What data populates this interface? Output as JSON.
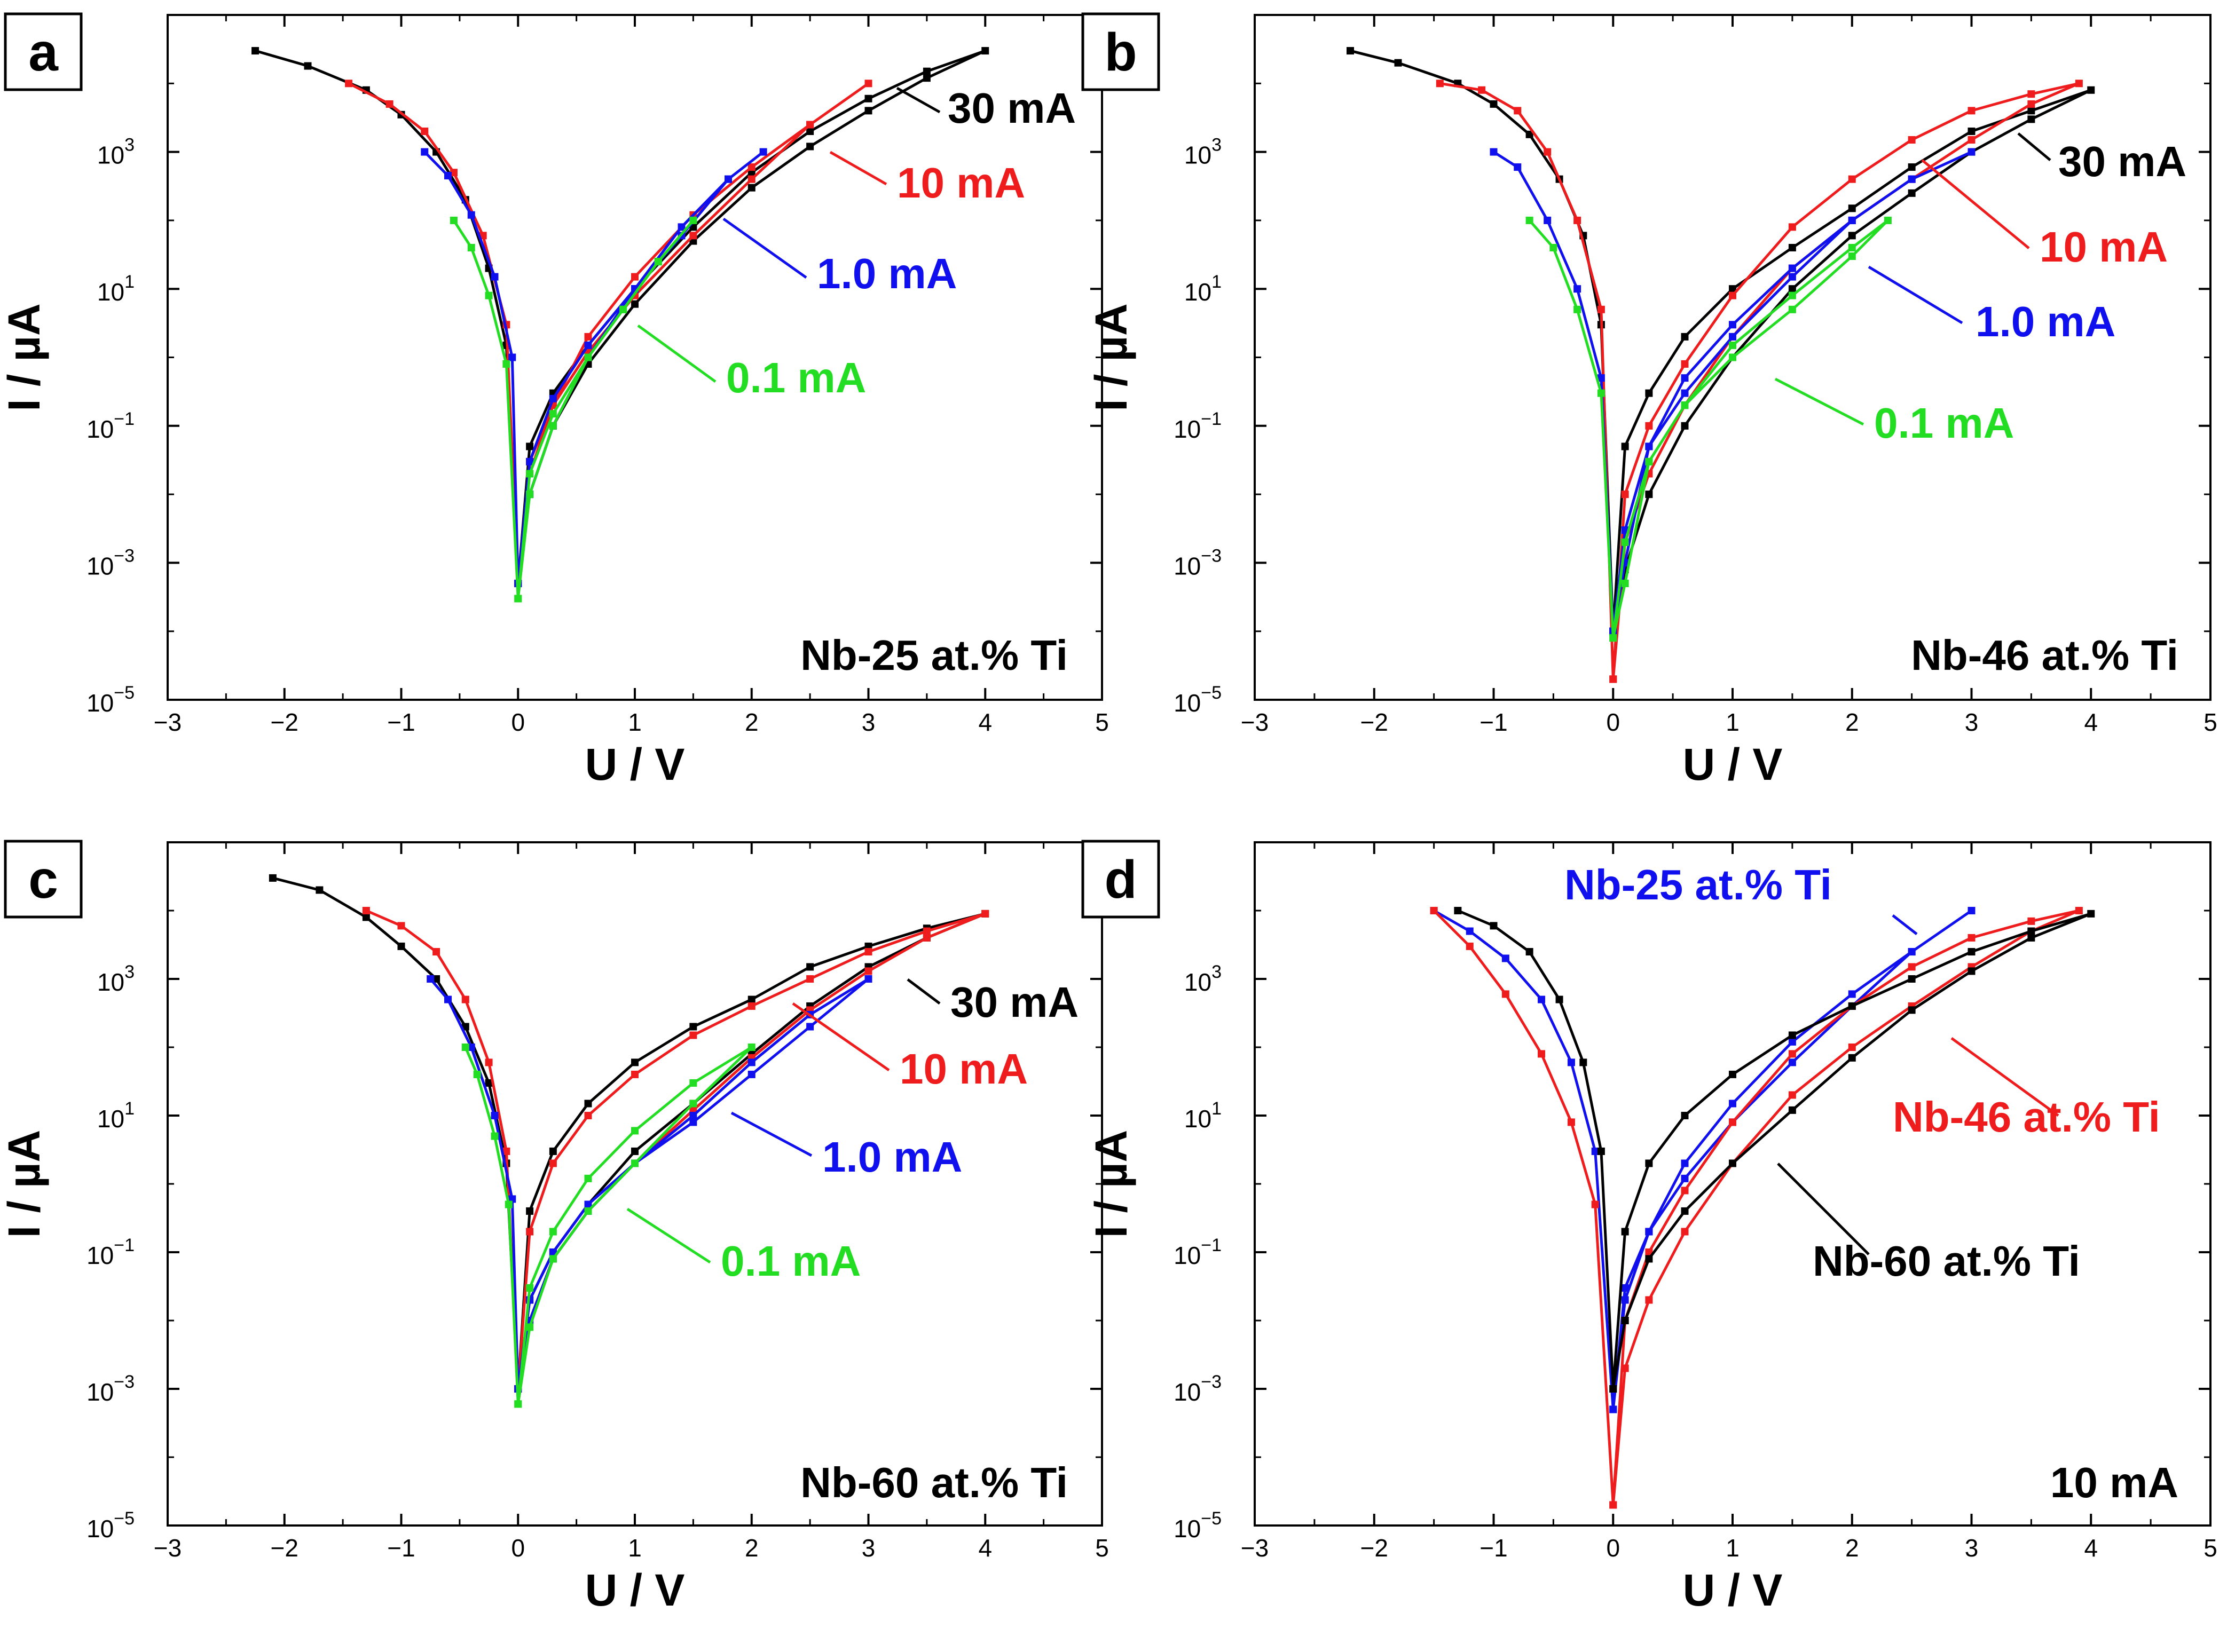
{
  "figure": {
    "colors": {
      "black": "#000000",
      "red": "#ee1c1c",
      "blue": "#1010ee",
      "green": "#22dd22"
    }
  },
  "chart_data": [
    {
      "type": "line",
      "panel": "a",
      "xlabel": "U / V",
      "ylabel": "I / µA",
      "xlim": [
        -3,
        5
      ],
      "ylim_log10": [
        -5,
        5
      ],
      "yscale": "log",
      "xticks": [
        "−3",
        "−2",
        "−1",
        "0",
        "1",
        "2",
        "3",
        "4",
        "5"
      ],
      "yticks": [
        {
          "base": "10",
          "exp": "3"
        },
        {
          "base": "10",
          "exp": "1"
        },
        {
          "base": "10",
          "exp": "−1"
        },
        {
          "base": "10",
          "exp": "−3"
        },
        {
          "base": "10",
          "exp": "−5"
        }
      ],
      "sample_label": "Nb-25 at.% Ti",
      "series": [
        {
          "name": "30 mA",
          "color": "black",
          "x": [
            -2.25,
            -1.8,
            -1.3,
            -1.0,
            -0.7,
            -0.45,
            -0.25,
            -0.1,
            0,
            0.1,
            0.3,
            0.6,
            1.0,
            1.5,
            2.0,
            2.5,
            3.0,
            3.5,
            4.0,
            3.5,
            3.0,
            2.5,
            2.0,
            1.5,
            1.0,
            0.6,
            0.3,
            0.1,
            0
          ],
          "y": [
            30000,
            18000,
            8000,
            3500,
            1000,
            200,
            20,
            1.5,
            0.0005,
            0.05,
            0.3,
            1.5,
            10,
            80,
            500,
            2000,
            6000,
            15000,
            30000,
            12000,
            4000,
            1200,
            300,
            50,
            6,
            0.8,
            0.1,
            0.01,
            0.0005
          ]
        },
        {
          "name": "10 mA",
          "color": "red",
          "x": [
            -1.45,
            -1.1,
            -0.8,
            -0.55,
            -0.3,
            -0.1,
            0,
            0.1,
            0.3,
            0.6,
            1.0,
            1.5,
            2.0,
            2.5,
            3.0,
            2.5,
            2.0,
            1.5,
            1.0,
            0.6,
            0.3,
            0.1,
            0
          ],
          "y": [
            10000,
            5000,
            2000,
            500,
            60,
            3,
            0.0005,
            0.03,
            0.2,
            1.2,
            8,
            60,
            400,
            2500,
            10000,
            2500,
            600,
            120,
            15,
            2,
            0.2,
            0.02,
            0.0005
          ]
        },
        {
          "name": "1.0 mA",
          "color": "blue",
          "x": [
            -0.8,
            -0.6,
            -0.4,
            -0.2,
            -0.05,
            0,
            0.1,
            0.3,
            0.6,
            1.0,
            1.4,
            1.8,
            2.1,
            1.8,
            1.4,
            1.0,
            0.6,
            0.3,
            0.1,
            0
          ],
          "y": [
            1000,
            450,
            120,
            15,
            1,
            0.0005,
            0.03,
            0.25,
            1.5,
            10,
            60,
            400,
            1000,
            400,
            80,
            10,
            1,
            0.1,
            0.01,
            0.0005
          ]
        },
        {
          "name": "0.1 mA",
          "color": "green",
          "x": [
            -0.55,
            -0.4,
            -0.25,
            -0.1,
            0,
            0.1,
            0.3,
            0.6,
            0.9,
            1.2,
            1.5,
            1.2,
            0.9,
            0.6,
            0.3,
            0.1,
            0
          ],
          "y": [
            100,
            40,
            8,
            0.8,
            0.0003,
            0.02,
            0.15,
            1,
            5,
            25,
            100,
            25,
            5,
            1,
            0.1,
            0.01,
            0.0003
          ]
        }
      ],
      "annotations": [
        {
          "text": "30 mA",
          "color": "black",
          "series": "30 mA"
        },
        {
          "text": "10 mA",
          "color": "red",
          "series": "10 mA"
        },
        {
          "text": "1.0 mA",
          "color": "blue",
          "series": "1.0 mA"
        },
        {
          "text": "0.1 mA",
          "color": "green",
          "series": "0.1 mA"
        }
      ]
    },
    {
      "type": "line",
      "panel": "b",
      "xlabel": "U / V",
      "ylabel": "I / µA",
      "xlim": [
        -3,
        5
      ],
      "ylim_log10": [
        -5,
        5
      ],
      "yscale": "log",
      "xticks": [
        "−3",
        "−2",
        "−1",
        "0",
        "1",
        "2",
        "3",
        "4",
        "5"
      ],
      "yticks": [
        {
          "base": "10",
          "exp": "3"
        },
        {
          "base": "10",
          "exp": "1"
        },
        {
          "base": "10",
          "exp": "−1"
        },
        {
          "base": "10",
          "exp": "−3"
        },
        {
          "base": "10",
          "exp": "−5"
        }
      ],
      "sample_label": "Nb-46 at.% Ti",
      "series": [
        {
          "name": "30 mA",
          "color": "black",
          "x": [
            -2.2,
            -1.8,
            -1.3,
            -1.0,
            -0.7,
            -0.45,
            -0.25,
            -0.1,
            0,
            0.1,
            0.3,
            0.6,
            1.0,
            1.5,
            2.0,
            2.5,
            3.0,
            3.5,
            4.0,
            3.5,
            3.0,
            2.5,
            2.0,
            1.5,
            1.0,
            0.6,
            0.3,
            0.1,
            0
          ],
          "y": [
            30000,
            20000,
            10000,
            5000,
            1800,
            400,
            60,
            3,
            0.0001,
            0.05,
            0.3,
            2,
            10,
            40,
            150,
            600,
            2000,
            4000,
            8000,
            3000,
            1000,
            250,
            60,
            10,
            1,
            0.1,
            0.01,
            0.0008,
            0.0001
          ]
        },
        {
          "name": "10 mA",
          "color": "red",
          "x": [
            -1.45,
            -1.1,
            -0.8,
            -0.55,
            -0.3,
            -0.1,
            0,
            0.1,
            0.3,
            0.6,
            1.0,
            1.5,
            2.0,
            2.5,
            3.0,
            3.5,
            3.9,
            3.5,
            3.0,
            2.5,
            2.0,
            1.5,
            1.0,
            0.6,
            0.3,
            0.1,
            0
          ],
          "y": [
            10000,
            8000,
            4000,
            1000,
            100,
            5,
            2e-05,
            0.01,
            0.1,
            0.8,
            8,
            80,
            400,
            1500,
            4000,
            7000,
            10000,
            5000,
            1500,
            400,
            100,
            20,
            2,
            0.2,
            0.02,
            0.002,
            2e-05
          ]
        },
        {
          "name": "1.0 mA",
          "color": "blue",
          "x": [
            -1.0,
            -0.8,
            -0.55,
            -0.3,
            -0.1,
            0,
            0.1,
            0.3,
            0.6,
            1.0,
            1.5,
            2.0,
            2.5,
            3.0,
            2.5,
            2.0,
            1.5,
            1.0,
            0.6,
            0.3,
            0.1,
            0
          ],
          "y": [
            1000,
            600,
            100,
            10,
            0.5,
            0.0001,
            0.003,
            0.05,
            0.5,
            3,
            20,
            100,
            400,
            1000,
            400,
            100,
            15,
            2,
            0.3,
            0.05,
            0.001,
            0.0001
          ]
        },
        {
          "name": "0.1 mA",
          "color": "green",
          "x": [
            -0.7,
            -0.5,
            -0.3,
            -0.1,
            0,
            0.1,
            0.3,
            0.6,
            1.0,
            1.5,
            2.0,
            2.3,
            2.0,
            1.5,
            1.0,
            0.6,
            0.3,
            0.1,
            0
          ],
          "y": [
            100,
            40,
            5,
            0.3,
            8e-05,
            0.002,
            0.03,
            0.2,
            1.5,
            8,
            40,
            100,
            30,
            5,
            1,
            0.2,
            0.03,
            0.0005,
            8e-05
          ]
        }
      ],
      "annotations": [
        {
          "text": "30 mA",
          "color": "black",
          "series": "30 mA"
        },
        {
          "text": "10 mA",
          "color": "red",
          "series": "10 mA"
        },
        {
          "text": "1.0 mA",
          "color": "blue",
          "series": "1.0 mA"
        },
        {
          "text": "0.1 mA",
          "color": "green",
          "series": "0.1 mA"
        }
      ]
    },
    {
      "type": "line",
      "panel": "c",
      "xlabel": "U / V",
      "ylabel": "I / µA",
      "xlim": [
        -3,
        5
      ],
      "ylim_log10": [
        -5,
        5
      ],
      "yscale": "log",
      "xticks": [
        "−3",
        "−2",
        "−1",
        "0",
        "1",
        "2",
        "3",
        "4",
        "5"
      ],
      "yticks": [
        {
          "base": "10",
          "exp": "3"
        },
        {
          "base": "10",
          "exp": "1"
        },
        {
          "base": "10",
          "exp": "−1"
        },
        {
          "base": "10",
          "exp": "−3"
        },
        {
          "base": "10",
          "exp": "−5"
        }
      ],
      "sample_label": "Nb-60 at.% Ti",
      "series": [
        {
          "name": "30 mA",
          "color": "black",
          "x": [
            -2.1,
            -1.7,
            -1.3,
            -1.0,
            -0.7,
            -0.45,
            -0.25,
            -0.1,
            0,
            0.1,
            0.3,
            0.6,
            1.0,
            1.5,
            2.0,
            2.5,
            3.0,
            3.5,
            4.0,
            3.5,
            3.0,
            2.5,
            2.0,
            1.5,
            1.0,
            0.6,
            0.3,
            0.1,
            0
          ],
          "y": [
            30000,
            20000,
            8000,
            3000,
            1000,
            200,
            30,
            2,
            0.001,
            0.4,
            3,
            15,
            60,
            200,
            500,
            1500,
            3000,
            5500,
            9000,
            4000,
            1500,
            400,
            80,
            15,
            3,
            0.5,
            0.1,
            0.02,
            0.001
          ]
        },
        {
          "name": "10 mA",
          "color": "red",
          "x": [
            -1.3,
            -1.0,
            -0.7,
            -0.45,
            -0.25,
            -0.1,
            0,
            0.1,
            0.3,
            0.6,
            1.0,
            1.5,
            2.0,
            2.5,
            3.0,
            3.5,
            4.0,
            3.5,
            3.0,
            2.5,
            2.0,
            1.5,
            1.0,
            0.6,
            0.3,
            0.1,
            0
          ],
          "y": [
            10000,
            6000,
            2500,
            500,
            60,
            3,
            0.001,
            0.2,
            2,
            10,
            40,
            150,
            400,
            1000,
            2500,
            5000,
            9000,
            4000,
            1300,
            350,
            70,
            12,
            2,
            0.4,
            0.08,
            0.01,
            0.001
          ]
        },
        {
          "name": "1.0 mA",
          "color": "blue",
          "x": [
            -0.75,
            -0.6,
            -0.4,
            -0.2,
            -0.05,
            0,
            0.1,
            0.3,
            0.6,
            1.0,
            1.5,
            2.0,
            2.5,
            3.0,
            2.5,
            2.0,
            1.5,
            1.0,
            0.6,
            0.3,
            0.1,
            0
          ],
          "y": [
            1000,
            500,
            100,
            10,
            0.6,
            0.001,
            0.02,
            0.1,
            0.5,
            2,
            8,
            40,
            200,
            1000,
            300,
            60,
            10,
            2,
            0.4,
            0.08,
            0.01,
            0.001
          ]
        },
        {
          "name": "0.1 mA",
          "color": "green",
          "x": [
            -0.45,
            -0.35,
            -0.2,
            -0.08,
            0,
            0.1,
            0.3,
            0.6,
            1.0,
            1.5,
            2.0,
            1.5,
            1.0,
            0.6,
            0.3,
            0.1,
            0
          ],
          "y": [
            100,
            40,
            5,
            0.5,
            0.0006,
            0.03,
            0.2,
            1.2,
            6,
            30,
            100,
            15,
            2,
            0.4,
            0.08,
            0.008,
            0.0006
          ]
        }
      ],
      "annotations": [
        {
          "text": "30 mA",
          "color": "black",
          "series": "30 mA"
        },
        {
          "text": "10 mA",
          "color": "red",
          "series": "10 mA"
        },
        {
          "text": "1.0 mA",
          "color": "blue",
          "series": "1.0 mA"
        },
        {
          "text": "0.1 mA",
          "color": "green",
          "series": "0.1 mA"
        }
      ]
    },
    {
      "type": "line",
      "panel": "d",
      "xlabel": "U / V",
      "ylabel": "I / µA",
      "xlim": [
        -3,
        5
      ],
      "ylim_log10": [
        -5,
        5
      ],
      "yscale": "log",
      "xticks": [
        "−3",
        "−2",
        "−1",
        "0",
        "1",
        "2",
        "3",
        "4",
        "5"
      ],
      "yticks": [
        {
          "base": "10",
          "exp": "3"
        },
        {
          "base": "10",
          "exp": "1"
        },
        {
          "base": "10",
          "exp": "−1"
        },
        {
          "base": "10",
          "exp": "−3"
        },
        {
          "base": "10",
          "exp": "−5"
        }
      ],
      "sample_label": "10 mA",
      "series": [
        {
          "name": "Nb-25 at.% Ti",
          "color": "blue",
          "x": [
            -1.5,
            -1.2,
            -0.9,
            -0.6,
            -0.35,
            -0.15,
            0,
            0.1,
            0.3,
            0.6,
            1.0,
            1.5,
            2.0,
            2.5,
            3.0,
            2.5,
            2.0,
            1.5,
            1.0,
            0.6,
            0.3,
            0.1,
            0
          ],
          "y": [
            10000,
            5000,
            2000,
            500,
            60,
            3,
            0.0005,
            0.03,
            0.2,
            1.2,
            8,
            60,
            400,
            2500,
            10000,
            2500,
            600,
            120,
            15,
            2,
            0.2,
            0.02,
            0.0005
          ]
        },
        {
          "name": "Nb-46 at.% Ti",
          "color": "red",
          "x": [
            -1.5,
            -1.2,
            -0.9,
            -0.6,
            -0.35,
            -0.15,
            0,
            0.1,
            0.3,
            0.6,
            1.0,
            1.5,
            2.0,
            2.5,
            3.0,
            3.5,
            3.9,
            3.5,
            3.0,
            2.5,
            2.0,
            1.5,
            1.0,
            0.6,
            0.3,
            0.1,
            0
          ],
          "y": [
            10000,
            3000,
            600,
            80,
            8,
            0.5,
            2e-05,
            0.01,
            0.1,
            0.8,
            8,
            80,
            400,
            1500,
            4000,
            7000,
            10000,
            5000,
            1500,
            400,
            100,
            20,
            2,
            0.2,
            0.02,
            0.002,
            2e-05
          ]
        },
        {
          "name": "Nb-60 at.% Ti",
          "color": "black",
          "x": [
            -1.3,
            -1.0,
            -0.7,
            -0.45,
            -0.25,
            -0.1,
            0,
            0.1,
            0.3,
            0.6,
            1.0,
            1.5,
            2.0,
            2.5,
            3.0,
            3.5,
            4.0,
            3.5,
            3.0,
            2.5,
            2.0,
            1.5,
            1.0,
            0.6,
            0.3,
            0.1,
            0
          ],
          "y": [
            10000,
            6000,
            2500,
            500,
            60,
            3,
            0.001,
            0.2,
            2,
            10,
            40,
            150,
            400,
            1000,
            2500,
            5000,
            9000,
            4000,
            1300,
            350,
            70,
            12,
            2,
            0.4,
            0.08,
            0.01,
            0.001
          ]
        }
      ],
      "annotations": [
        {
          "text": "Nb-25 at.% Ti",
          "color": "blue",
          "series": "Nb-25 at.% Ti"
        },
        {
          "text": "Nb-46 at.% Ti",
          "color": "red",
          "series": "Nb-46 at.% Ti"
        },
        {
          "text": "Nb-60 at.% Ti",
          "color": "black",
          "series": "Nb-60 at.% Ti"
        }
      ]
    }
  ]
}
